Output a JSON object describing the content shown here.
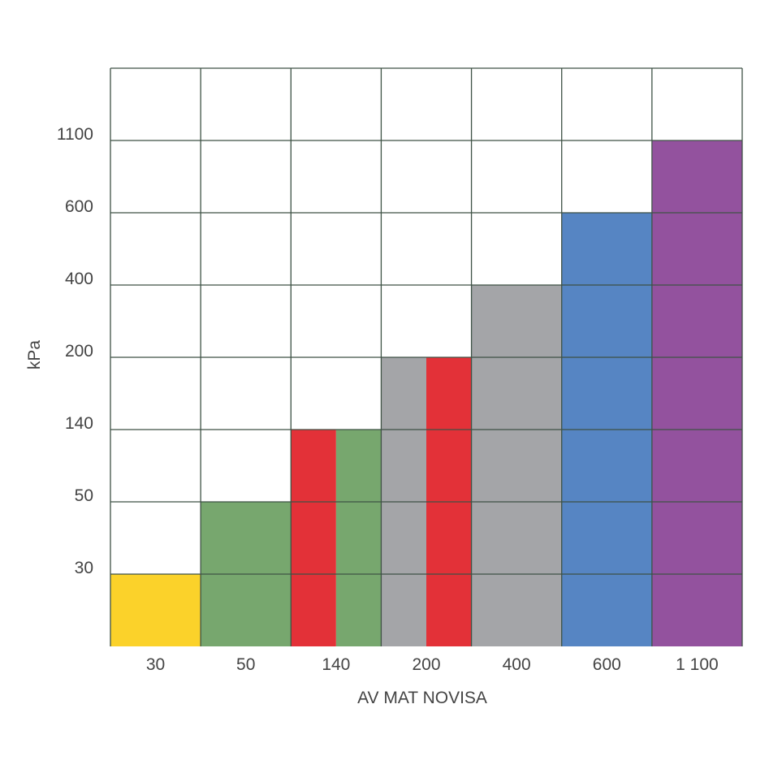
{
  "chart_data": {
    "type": "bar",
    "xlabel": "AV MAT NOVISA",
    "ylabel": "kPa",
    "categories": [
      "30",
      "50",
      "140",
      "200",
      "400",
      "600",
      "1 100"
    ],
    "y_ticks": [
      "30",
      "50",
      "140",
      "200",
      "400",
      "600",
      "1100"
    ],
    "scale": "ordinal",
    "grid": true,
    "legend": "none",
    "bars": [
      {
        "category": "30",
        "value": 30,
        "color": "#fbd22a"
      },
      {
        "category": "50",
        "value": 50,
        "color": "#77a76e"
      },
      {
        "category": "140",
        "value": 140,
        "color": "#e33138"
      },
      {
        "category": "140",
        "value": 140,
        "color": "#77a76e"
      },
      {
        "category": "200",
        "value": 200,
        "color": "#a4a5a8"
      },
      {
        "category": "200",
        "value": 200,
        "color": "#e33138"
      },
      {
        "category": "400",
        "value": 400,
        "color": "#a4a5a8"
      },
      {
        "category": "600",
        "value": 600,
        "color": "#5685c3"
      },
      {
        "category": "1 100",
        "value": 1100,
        "color": "#93529e"
      }
    ],
    "grid_color": "#3e5245"
  }
}
